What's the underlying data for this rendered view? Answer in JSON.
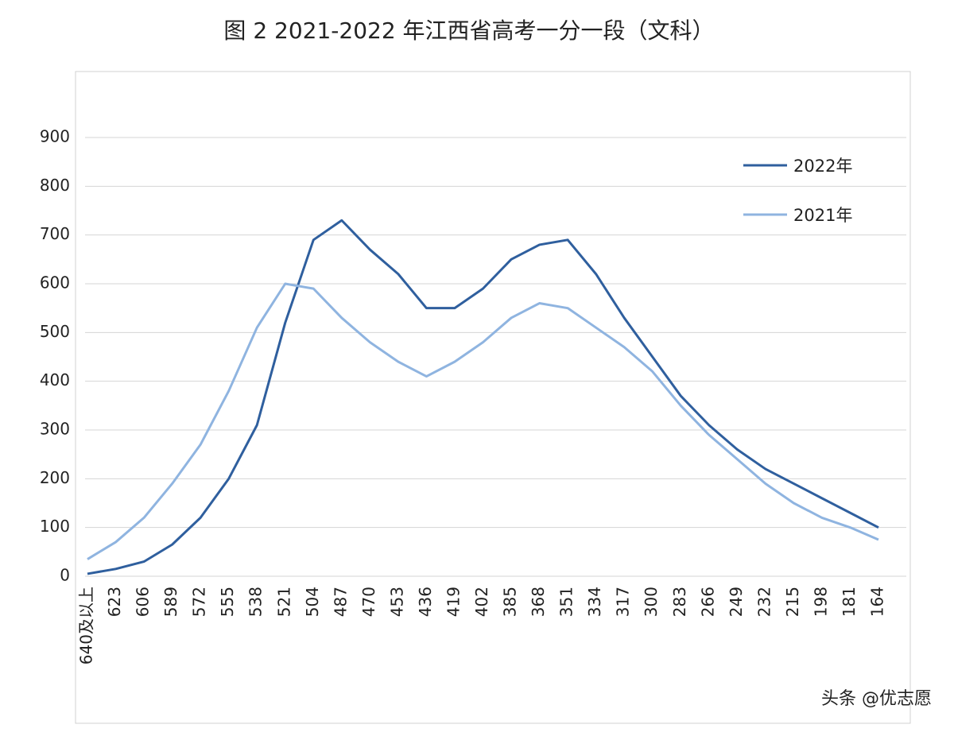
{
  "chart_data": {
    "type": "line",
    "title": "图 2 2021-2022 年江西省高考一分一段（文科）",
    "categories": [
      "640及以上",
      "623",
      "606",
      "589",
      "572",
      "555",
      "538",
      "521",
      "504",
      "487",
      "470",
      "453",
      "436",
      "419",
      "402",
      "385",
      "368",
      "351",
      "334",
      "317",
      "300",
      "283",
      "266",
      "249",
      "232",
      "215",
      "198",
      "181",
      "164"
    ],
    "series": [
      {
        "name": "2022年",
        "color": "#2f5f9e",
        "values": [
          5,
          15,
          30,
          65,
          120,
          200,
          310,
          520,
          690,
          730,
          670,
          620,
          550,
          550,
          590,
          650,
          680,
          690,
          620,
          530,
          450,
          370,
          310,
          260,
          220,
          190,
          160,
          130,
          100
        ]
      },
      {
        "name": "2021年",
        "color": "#8fb4e0",
        "values": [
          35,
          70,
          120,
          190,
          270,
          380,
          510,
          600,
          590,
          530,
          480,
          440,
          410,
          440,
          480,
          530,
          560,
          550,
          510,
          470,
          420,
          350,
          290,
          240,
          190,
          150,
          120,
          100,
          75
        ]
      }
    ],
    "ylim": [
      0,
      900
    ],
    "yticks": [
      0,
      100,
      200,
      300,
      400,
      500,
      600,
      700,
      800,
      900
    ],
    "grid": true,
    "legend": "top-right"
  },
  "watermark": "头条 @优志愿"
}
